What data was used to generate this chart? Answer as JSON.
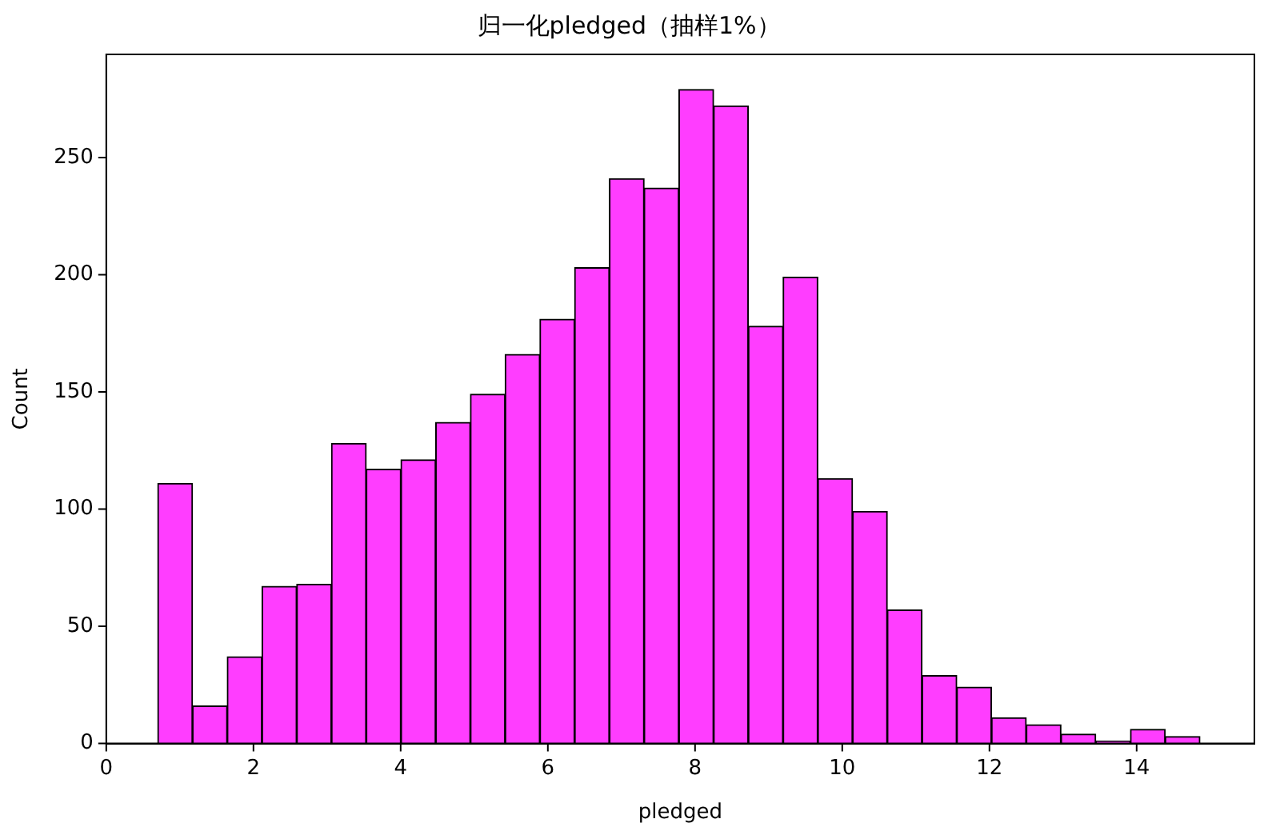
{
  "chart_data": {
    "type": "histogram",
    "title": "归一化pledged（抽样1%）",
    "xlabel": "pledged",
    "ylabel": "Count",
    "color": "#ff3dff",
    "bins": [
      0.7,
      1.172,
      1.644,
      2.116,
      2.588,
      3.06,
      3.532,
      4.004,
      4.476,
      4.948,
      5.42,
      5.892,
      6.364,
      6.836,
      7.308,
      7.78,
      8.252,
      8.724,
      9.196,
      9.668,
      10.14,
      10.612,
      11.084,
      11.556,
      12.028,
      12.5,
      12.972,
      13.444,
      13.916,
      14.388,
      14.86
    ],
    "values": [
      111,
      16,
      37,
      67,
      68,
      128,
      117,
      121,
      137,
      149,
      166,
      181,
      203,
      241,
      237,
      279,
      272,
      178,
      199,
      113,
      99,
      57,
      29,
      24,
      11,
      8,
      4,
      1,
      6,
      3
    ],
    "xlim": [
      0,
      15.6
    ],
    "xticks": [
      0,
      2,
      4,
      6,
      8,
      10,
      12,
      14
    ],
    "ylim": [
      0,
      294
    ],
    "yticks": [
      0,
      50,
      100,
      150,
      200,
      250
    ],
    "grid": false,
    "legend": false
  }
}
